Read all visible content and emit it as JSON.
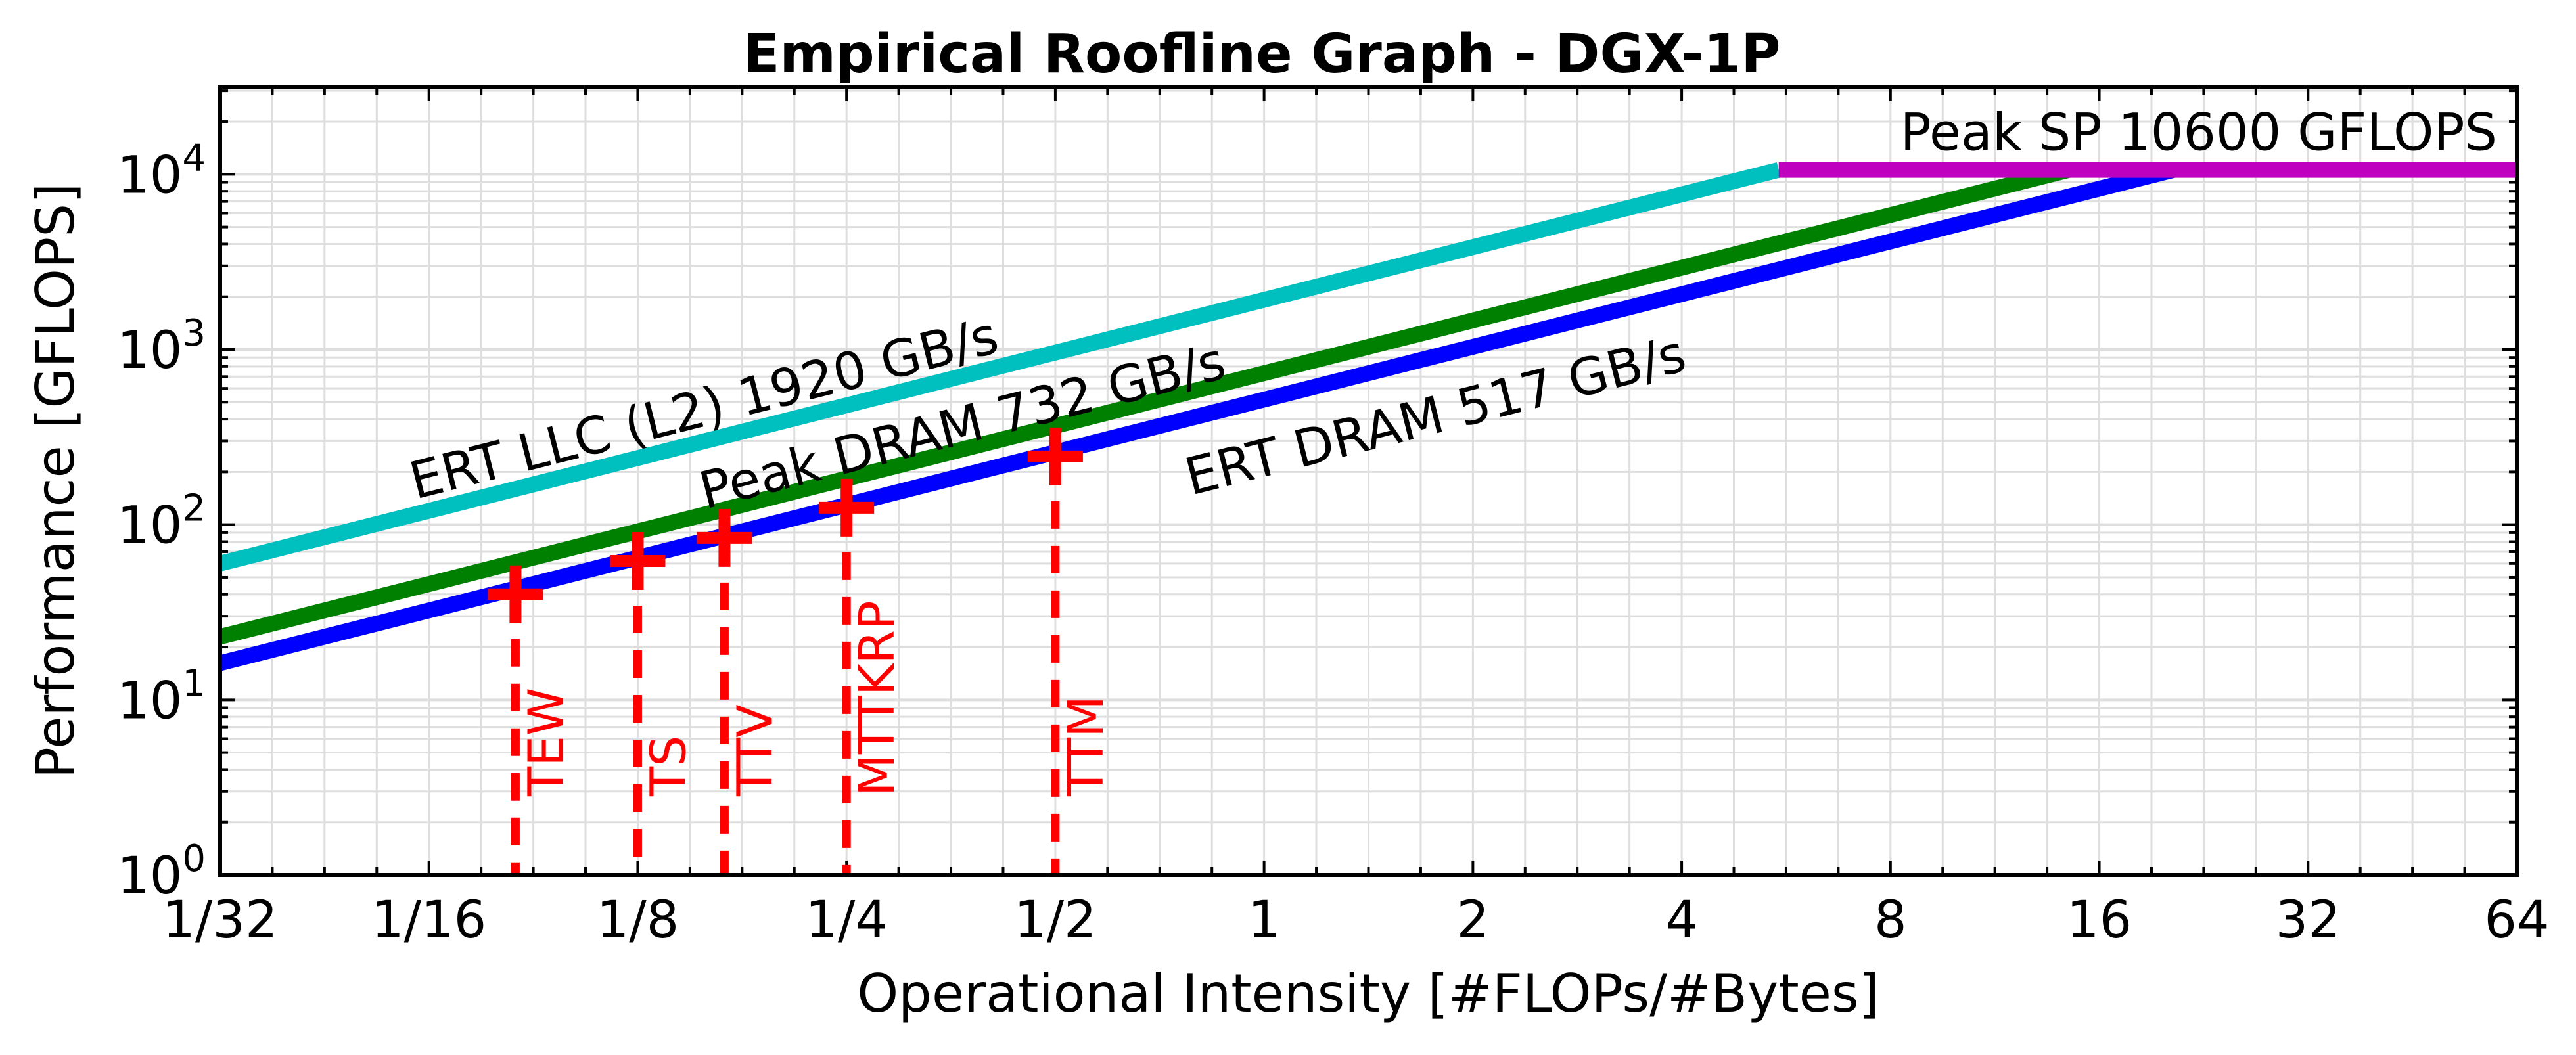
{
  "chart_data": {
    "type": "line",
    "title": "Empirical Roofline Graph - DGX-1P",
    "xlabel": "Operational Intensity [#FLOPs/#Bytes]",
    "ylabel": "Performance [GFLOPS]",
    "x_scale": "log2",
    "y_scale": "log10",
    "xlim": [
      0.03125,
      64
    ],
    "ylim": [
      1,
      31622
    ],
    "grid": true,
    "x_ticks": [
      {
        "value": 0.03125,
        "label": "1/32"
      },
      {
        "value": 0.0625,
        "label": "1/16"
      },
      {
        "value": 0.125,
        "label": "1/8"
      },
      {
        "value": 0.25,
        "label": "1/4"
      },
      {
        "value": 0.5,
        "label": "1/2"
      },
      {
        "value": 1,
        "label": "1"
      },
      {
        "value": 2,
        "label": "2"
      },
      {
        "value": 4,
        "label": "4"
      },
      {
        "value": 8,
        "label": "8"
      },
      {
        "value": 16,
        "label": "16"
      },
      {
        "value": 32,
        "label": "32"
      },
      {
        "value": 64,
        "label": "64"
      }
    ],
    "y_ticks": [
      {
        "value": 1,
        "base": "10",
        "exp": "0"
      },
      {
        "value": 10,
        "base": "10",
        "exp": "1"
      },
      {
        "value": 100,
        "base": "10",
        "exp": "2"
      },
      {
        "value": 1000,
        "base": "10",
        "exp": "3"
      },
      {
        "value": 10000,
        "base": "10",
        "exp": "4"
      }
    ],
    "rooflines": [
      {
        "name": "ERT LLC (L2) 1920 GB/s",
        "bandwidth": 1920,
        "color": "#00bfbf",
        "x": [
          0.03125,
          5.52
        ],
        "y": [
          60,
          10600
        ]
      },
      {
        "name": "Peak DRAM 732 GB/s",
        "bandwidth": 732,
        "color": "#008000",
        "x": [
          0.03125,
          14.48
        ],
        "y": [
          22.9,
          10600
        ]
      },
      {
        "name": "ERT DRAM 517 GB/s",
        "bandwidth": 517,
        "color": "#0000ff",
        "x": [
          0.03125,
          20.5
        ],
        "y": [
          16.2,
          10600
        ]
      }
    ],
    "peak_compute": {
      "name": "Peak SP 10600 GFLOPS",
      "value": 10600,
      "color": "#bf00bf",
      "x": [
        5.52,
        64
      ]
    },
    "kernels": {
      "color": "#ff0000",
      "points": [
        {
          "name": "TEW",
          "x": 0.0833,
          "y": 40
        },
        {
          "name": "TS",
          "x": 0.125,
          "y": 62
        },
        {
          "name": "TTV",
          "x": 0.1667,
          "y": 84
        },
        {
          "name": "MTTKRP",
          "x": 0.25,
          "y": 125
        },
        {
          "name": "TTM",
          "x": 0.5,
          "y": 245
        }
      ]
    }
  }
}
